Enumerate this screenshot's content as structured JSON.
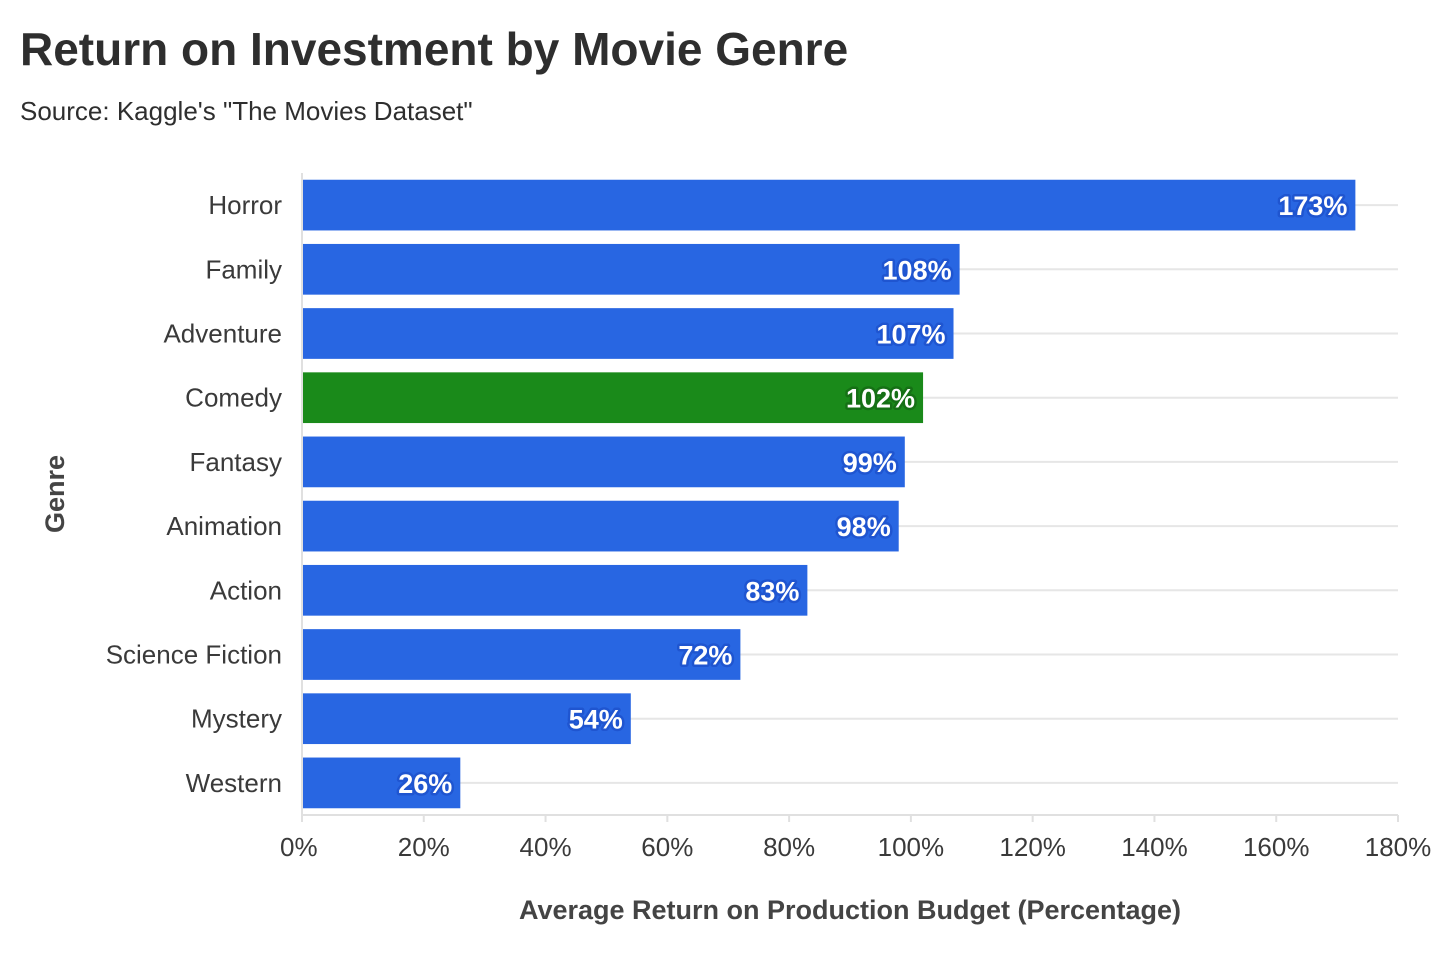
{
  "title": "Return on Investment by Movie Genre",
  "subtitle": "Source: Kaggle's \"The Movies Dataset\"",
  "colors": {
    "default_bar": "#2866e2",
    "highlight_bar": "#1a8a1a",
    "default_outline": "#1f55d0",
    "highlight_outline": "#157015"
  },
  "chart_data": {
    "type": "bar",
    "orientation": "horizontal",
    "categories": [
      "Horror",
      "Family",
      "Adventure",
      "Comedy",
      "Fantasy",
      "Animation",
      "Action",
      "Science Fiction",
      "Mystery",
      "Western"
    ],
    "values": [
      173,
      108,
      107,
      102,
      99,
      98,
      83,
      72,
      54,
      26
    ],
    "data_labels": [
      "173%",
      "108%",
      "107%",
      "102%",
      "99%",
      "98%",
      "83%",
      "72%",
      "54%",
      "26%"
    ],
    "highlight": [
      "Comedy"
    ],
    "xlabel": "Average Return on Production Budget (Percentage)",
    "ylabel": "Genre",
    "xlim": [
      0,
      180
    ],
    "xticks": [
      0,
      20,
      40,
      60,
      80,
      100,
      120,
      140,
      160,
      180
    ],
    "xtick_labels": [
      "0%",
      "20%",
      "40%",
      "60%",
      "80%",
      "100%",
      "120%",
      "140%",
      "160%",
      "180%"
    ],
    "grid": "horizontal"
  }
}
